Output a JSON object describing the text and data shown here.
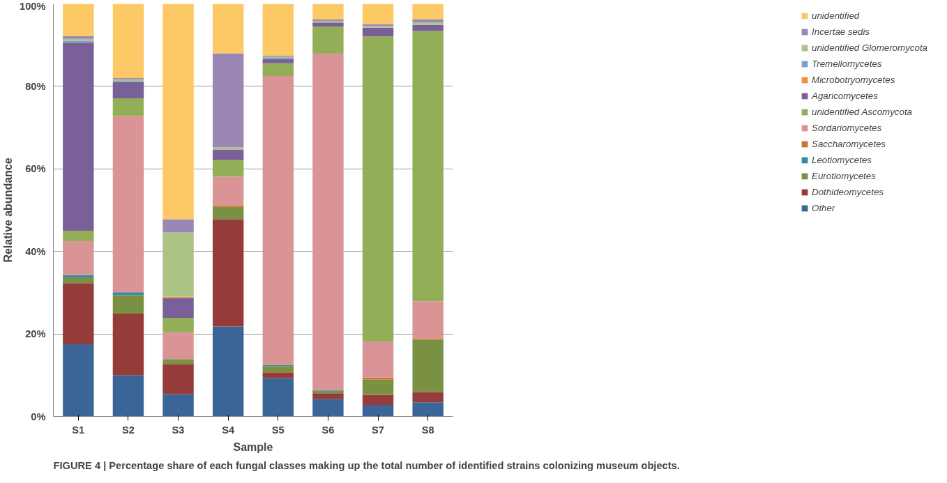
{
  "chart_data": {
    "type": "bar",
    "stacked": true,
    "xlabel": "Sample",
    "ylabel": "Relative abundance",
    "categories": [
      "S1",
      "S2",
      "S3",
      "S4",
      "S5",
      "S6",
      "S7",
      "S8"
    ],
    "series": [
      {
        "name": "Other",
        "color": "#3c6597",
        "values": [
          17.5,
          10.0,
          5.4,
          21.8,
          9.3,
          4.2,
          2.8,
          3.4
        ]
      },
      {
        "name": "Dothideomycetes",
        "color": "#953c3a",
        "values": [
          14.8,
          14.9,
          7.2,
          26.0,
          1.4,
          1.4,
          2.4,
          2.5
        ]
      },
      {
        "name": "Eurotiomycetes",
        "color": "#7a9143",
        "values": [
          1.4,
          4.5,
          1.3,
          3.0,
          1.5,
          0.6,
          3.7,
          12.7
        ]
      },
      {
        "name": "Leotiomycetes",
        "color": "#3a8aa1",
        "values": [
          0.6,
          0.7,
          0,
          0,
          0.3,
          0.2,
          0,
          0
        ]
      },
      {
        "name": "Saccharomycetes",
        "color": "#c87533",
        "values": [
          0,
          0,
          0,
          0.4,
          0,
          0,
          0.5,
          0.3
        ]
      },
      {
        "name": "Sordariomycetes",
        "color": "#da9495",
        "values": [
          8.2,
          42.7,
          6.5,
          6.9,
          70.0,
          81.5,
          8.7,
          9.0
        ]
      },
      {
        "name": "unidentified Ascomycota",
        "color": "#92ae56",
        "values": [
          2.5,
          4.3,
          3.5,
          4.0,
          3.1,
          6.6,
          74.0,
          65.5
        ]
      },
      {
        "name": "Agaricomycetes",
        "color": "#7a6098",
        "values": [
          45.6,
          3.9,
          4.8,
          2.6,
          1.0,
          1.0,
          2.1,
          1.5
        ]
      },
      {
        "name": "Microbotryomycetes",
        "color": "#f28e3e",
        "values": [
          0,
          0,
          0.3,
          0,
          0,
          0,
          0,
          0
        ]
      },
      {
        "name": "Tremellomycetes",
        "color": "#7f9ecf",
        "values": [
          0.4,
          0.3,
          0,
          0,
          0.3,
          0,
          0,
          0
        ]
      },
      {
        "name": "unidentified Glomeromycota",
        "color": "#adc383",
        "values": [
          0.5,
          0.4,
          15.6,
          0.5,
          0.3,
          0.3,
          0.4,
          0.6
        ]
      },
      {
        "name": "Incertae sedis",
        "color": "#9b87b5",
        "values": [
          0.7,
          0.3,
          3.2,
          22.8,
          0.3,
          0.4,
          0.5,
          0.8
        ]
      },
      {
        "name": "unidentified",
        "color": "#fdc966",
        "values": [
          7.8,
          18.0,
          52.2,
          12.0,
          12.5,
          3.8,
          4.9,
          3.7
        ]
      }
    ],
    "ylim": [
      0,
      100
    ],
    "yticks": [
      {
        "value": 0,
        "label": "0%"
      },
      {
        "value": 20,
        "label": "20%"
      },
      {
        "value": 40,
        "label": "40%"
      },
      {
        "value": 60,
        "label": "60%"
      },
      {
        "value": 80,
        "label": "80%"
      },
      {
        "value": 100,
        "label": "100%"
      }
    ],
    "grid": "y",
    "legend": "right",
    "annotations": [
      "FIGURE 4 | Percentage share of each fungal classes making up the total number of identified strains colonizing museum objects."
    ]
  }
}
